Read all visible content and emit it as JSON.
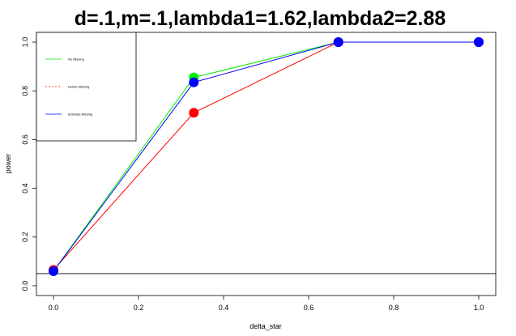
{
  "chart_data": {
    "type": "line",
    "title": "d=.1,m=.1,lambda1=1.62,lambda2=2.88",
    "xlabel": "delta_star",
    "ylabel": "power",
    "xlim": [
      -0.04,
      1.04
    ],
    "ylim": [
      -0.04,
      1.04
    ],
    "xticks": [
      0.0,
      0.2,
      0.4,
      0.6,
      0.8,
      1.0
    ],
    "yticks": [
      0.0,
      0.2,
      0.4,
      0.6,
      0.8,
      1.0
    ],
    "xtick_labels": [
      "0.0",
      "0.2",
      "0.4",
      "0.6",
      "0.8",
      "1.0"
    ],
    "ytick_labels": [
      "0.0",
      "0.2",
      "0.4",
      "0.6",
      "0.8",
      "1.0"
    ],
    "reference_line": {
      "y": 0.05,
      "color": "#000000"
    },
    "x": [
      0.0,
      0.33,
      0.67,
      1.0
    ],
    "series": [
      {
        "name": "No Missing",
        "values": [
          0.06,
          0.855,
          1.0,
          1.0
        ],
        "color": "#00ee00",
        "dash": "solid"
      },
      {
        "name": "Delete Missing",
        "values": [
          0.065,
          0.71,
          1.0,
          1.0
        ],
        "color": "#ff0000",
        "dash": "dashed"
      },
      {
        "name": "Estimate Missing",
        "values": [
          0.06,
          0.835,
          1.0,
          1.0
        ],
        "color": "#0000ff",
        "dash": "solid"
      }
    ],
    "legend_position": "top-left",
    "grid": false
  }
}
